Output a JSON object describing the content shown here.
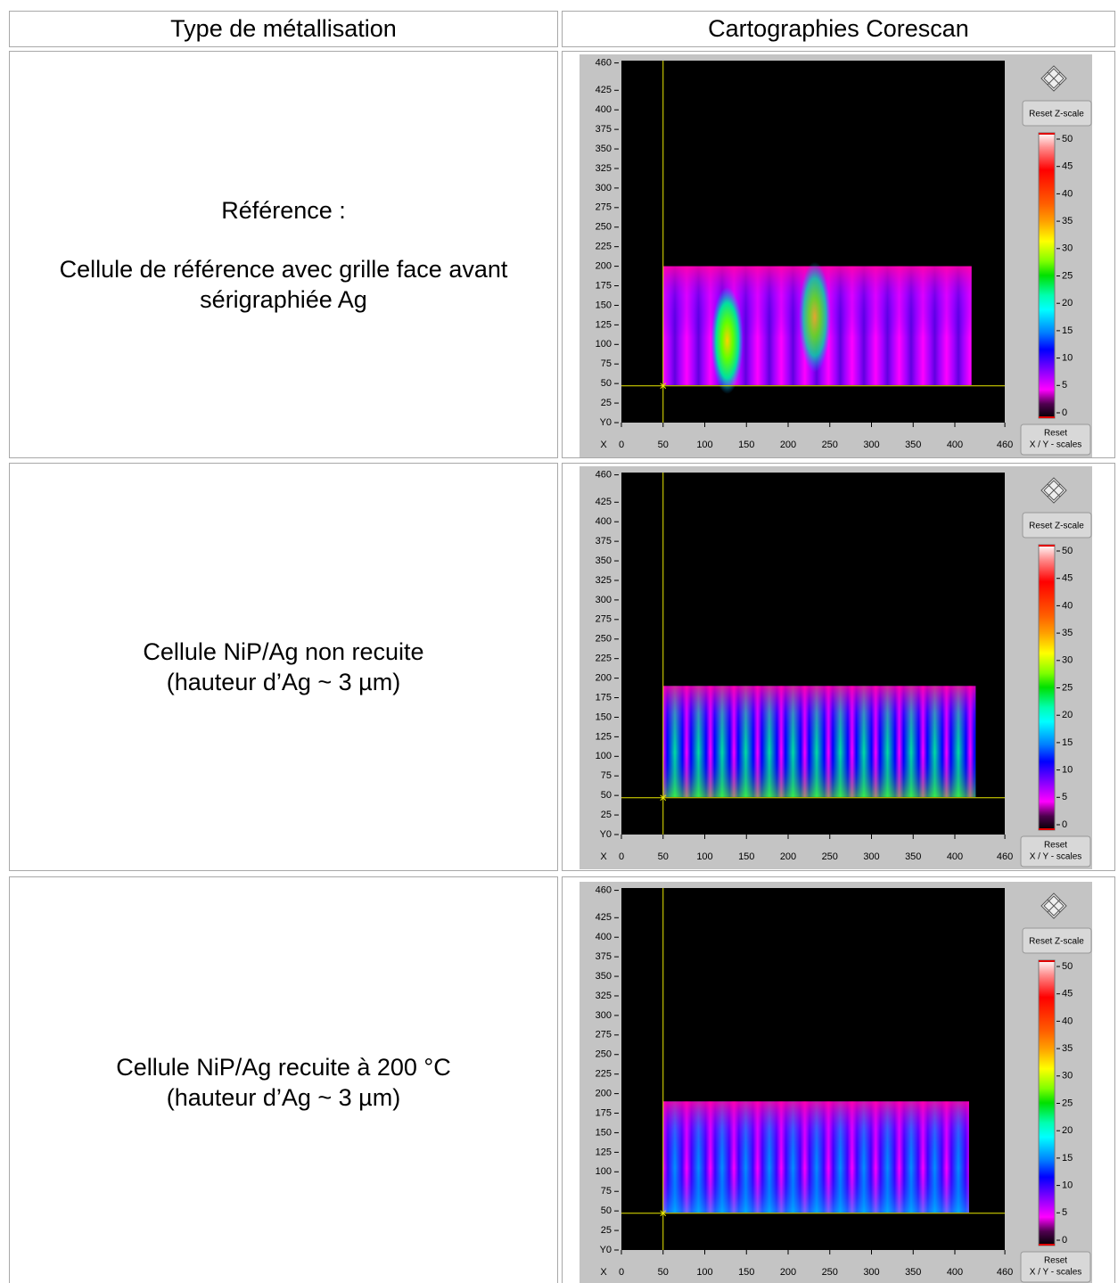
{
  "table": {
    "headers": [
      "Type de métallisation",
      "Cartographies Corescan"
    ],
    "rows": [
      {
        "text": [
          [
            "Référence :"
          ],
          [
            "Cellule de référence avec grille face avant",
            "sérigraphiée Ag"
          ]
        ],
        "scan": {
          "x_label": "X",
          "y_label": "Y",
          "xticks": [
            0,
            50,
            100,
            150,
            200,
            250,
            300,
            350,
            400,
            460
          ],
          "yticks": [
            0,
            25,
            50,
            75,
            100,
            125,
            150,
            175,
            200,
            225,
            250,
            275,
            300,
            325,
            350,
            375,
            400,
            425,
            460
          ],
          "zticks": [
            0,
            5,
            10,
            15,
            20,
            25,
            30,
            35,
            40,
            45,
            50
          ],
          "reset_z": "Reset Z-scale",
          "reset_xy": [
            "Reset",
            "X / Y - scales"
          ]
        }
      },
      {
        "text": [
          [
            "Cellule NiP/Ag non recuite",
            "(hauteur d’Ag ~ 3 µm)"
          ]
        ],
        "scan": {
          "x_label": "X",
          "y_label": "Y",
          "xticks": [
            0,
            50,
            100,
            150,
            200,
            250,
            300,
            350,
            400,
            460
          ],
          "yticks": [
            0,
            25,
            50,
            75,
            100,
            125,
            150,
            175,
            200,
            225,
            250,
            275,
            300,
            325,
            350,
            375,
            400,
            425,
            460
          ],
          "zticks": [
            0,
            5,
            10,
            15,
            20,
            25,
            30,
            35,
            40,
            45,
            50
          ],
          "reset_z": "Reset Z-scale",
          "reset_xy": [
            "Reset",
            "X / Y - scales"
          ]
        }
      },
      {
        "text": [
          [
            "Cellule NiP/Ag recuite à 200 °C",
            "(hauteur d’Ag ~ 3 µm)"
          ]
        ],
        "scan": {
          "x_label": "X",
          "y_label": "Y",
          "xticks": [
            0,
            50,
            100,
            150,
            200,
            250,
            300,
            350,
            400,
            460
          ],
          "yticks": [
            0,
            25,
            50,
            75,
            100,
            125,
            150,
            175,
            200,
            225,
            250,
            275,
            300,
            325,
            350,
            375,
            400,
            425,
            460
          ],
          "zticks": [
            0,
            5,
            10,
            15,
            20,
            25,
            30,
            35,
            40,
            45,
            50
          ],
          "reset_z": "Reset Z-scale",
          "reset_xy": [
            "Reset",
            "X / Y - scales"
          ]
        }
      }
    ]
  }
}
